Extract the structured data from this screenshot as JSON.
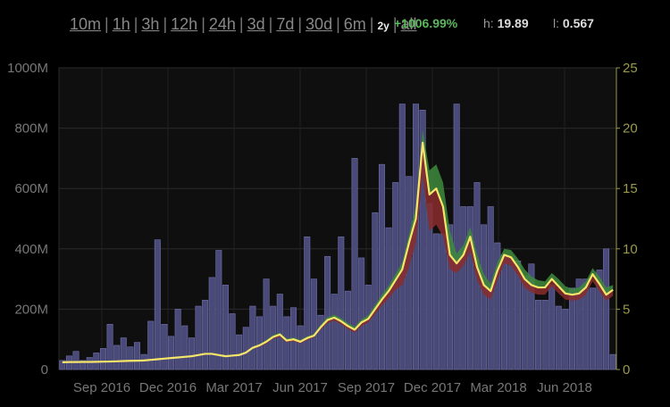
{
  "range_selector": {
    "options": [
      "10m",
      "1h",
      "3h",
      "12h",
      "24h",
      "3d",
      "7d",
      "30d",
      "6m",
      "2y",
      "all"
    ],
    "active": "2y"
  },
  "stats": {
    "change": "+1006.99%",
    "high_label": "h:",
    "high_value": "19.89",
    "low_label": "l:",
    "low_value": "0.567"
  },
  "colors": {
    "background": "#000000",
    "plot_background": "#0f0f0f",
    "bar": "#4a4a7a",
    "price_line": "#f5e56b",
    "price_up_fill": "#3d8a3d",
    "price_down_fill": "#8a2c2c",
    "left_axis": "#777777",
    "right_axis": "#9a9a4a"
  },
  "chart_data": {
    "type": "bar+line",
    "x_labels": [
      "Sep 2016",
      "Dec 2016",
      "Mar 2017",
      "Jun 2017",
      "Sep 2017",
      "Dec 2017",
      "Mar 2018",
      "Jun 2018"
    ],
    "left_axis": {
      "ticks": [
        "0",
        "200M",
        "400M",
        "600M",
        "800M",
        "1000M"
      ],
      "range": [
        0,
        1000000000
      ]
    },
    "right_axis": {
      "ticks": [
        "0",
        "5",
        "10",
        "15",
        "20",
        "25"
      ],
      "range": [
        0,
        25
      ]
    },
    "grid": true,
    "volume": [
      30,
      45,
      60,
      30,
      40,
      55,
      70,
      150,
      80,
      105,
      75,
      90,
      50,
      160,
      430,
      150,
      110,
      200,
      145,
      105,
      210,
      230,
      305,
      395,
      280,
      185,
      115,
      140,
      210,
      175,
      300,
      210,
      250,
      175,
      205,
      145,
      440,
      300,
      180,
      375,
      250,
      440,
      260,
      700,
      370,
      280,
      520,
      680,
      470,
      620,
      880,
      640,
      880,
      860,
      550,
      450,
      450,
      480,
      880,
      540,
      540,
      620,
      480,
      540,
      420,
      380,
      370,
      360,
      310,
      350,
      230,
      230,
      280,
      210,
      200,
      270,
      300,
      300,
      270,
      330,
      400,
      50
    ],
    "price_close": [
      0.6,
      0.62,
      0.62,
      0.63,
      0.63,
      0.64,
      0.65,
      0.66,
      0.68,
      0.7,
      0.72,
      0.73,
      0.75,
      0.8,
      0.85,
      0.9,
      0.95,
      1.0,
      1.05,
      1.1,
      1.2,
      1.3,
      1.3,
      1.2,
      1.1,
      1.15,
      1.2,
      1.4,
      1.8,
      2.0,
      2.3,
      2.7,
      2.9,
      2.4,
      2.5,
      2.3,
      2.6,
      2.8,
      3.5,
      4.1,
      4.3,
      4.0,
      3.6,
      3.3,
      3.9,
      4.2,
      5.0,
      5.8,
      6.5,
      7.4,
      8.3,
      10.5,
      12.5,
      18.8,
      14.5,
      15.0,
      13.5,
      9.5,
      8.8,
      9.5,
      11.0,
      8.5,
      7.0,
      6.5,
      8.2,
      9.5,
      9.3,
      8.5,
      7.5,
      7.0,
      6.8,
      6.8,
      7.5,
      6.9,
      6.3,
      6.2,
      6.3,
      6.8,
      7.9,
      7.1,
      6.2,
      6.6
    ],
    "price_high": [
      0.62,
      0.64,
      0.65,
      0.66,
      0.66,
      0.67,
      0.68,
      0.69,
      0.71,
      0.73,
      0.75,
      0.77,
      0.79,
      0.84,
      0.89,
      0.94,
      1.0,
      1.05,
      1.1,
      1.16,
      1.27,
      1.37,
      1.38,
      1.27,
      1.17,
      1.22,
      1.27,
      1.48,
      1.9,
      2.12,
      2.45,
      2.85,
      3.05,
      2.55,
      2.65,
      2.45,
      2.75,
      2.95,
      3.7,
      4.35,
      4.55,
      4.25,
      3.85,
      3.55,
      4.15,
      4.5,
      5.35,
      6.2,
      6.95,
      7.9,
      8.9,
      11.2,
      13.5,
      19.89,
      16.5,
      17.0,
      15.5,
      11.5,
      9.6,
      10.3,
      11.8,
      9.6,
      7.9,
      7.1,
      8.9,
      10.0,
      9.9,
      9.2,
      8.3,
      7.7,
      7.4,
      7.3,
      8.0,
      7.5,
      6.9,
      6.7,
      6.8,
      7.3,
      8.4,
      7.7,
      6.8,
      7.0
    ],
    "price_low": [
      0.567,
      0.59,
      0.6,
      0.6,
      0.6,
      0.61,
      0.62,
      0.63,
      0.65,
      0.67,
      0.69,
      0.7,
      0.72,
      0.76,
      0.81,
      0.86,
      0.9,
      0.95,
      1.0,
      1.04,
      1.13,
      1.22,
      1.22,
      1.13,
      1.04,
      1.08,
      1.13,
      1.32,
      1.7,
      1.88,
      2.15,
      2.55,
      2.7,
      2.25,
      2.35,
      2.15,
      2.45,
      2.65,
      3.3,
      3.85,
      4.05,
      3.75,
      3.35,
      3.05,
      3.6,
      3.9,
      4.6,
      5.3,
      5.9,
      6.6,
      7.0,
      8.5,
      10.5,
      16.0,
      11.5,
      12.0,
      11.0,
      8.3,
      8.0,
      8.6,
      9.8,
      7.4,
      6.2,
      5.8,
      7.4,
      8.8,
      8.6,
      7.8,
      6.8,
      6.4,
      6.2,
      6.2,
      6.9,
      6.3,
      5.8,
      5.7,
      5.8,
      6.2,
      7.3,
      6.5,
      5.7,
      6.1
    ]
  }
}
